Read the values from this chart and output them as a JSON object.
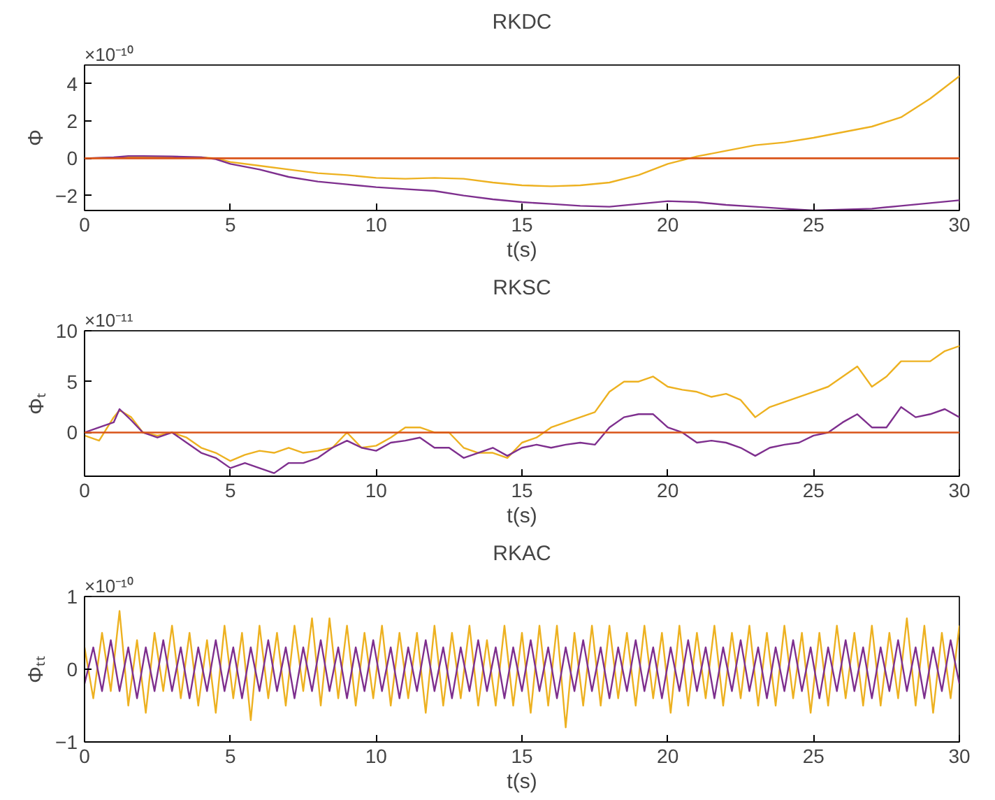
{
  "chart_data": [
    {
      "type": "line",
      "title": "RKDC",
      "xlabel": "t(s)",
      "ylabel": "Φ",
      "annotations": [
        "×10⁻¹⁰"
      ],
      "xlim": [
        0,
        30
      ],
      "ylim": [
        -2.8,
        5
      ],
      "xticks": [
        0,
        5,
        10,
        15,
        20,
        25,
        30
      ],
      "yticks": [
        -2,
        0,
        2,
        4
      ],
      "grid": false,
      "x": [
        0,
        1,
        1.5,
        2,
        3,
        4,
        4.5,
        5,
        6,
        7,
        8,
        9,
        10,
        11,
        12,
        13,
        14,
        15,
        16,
        17,
        18,
        19,
        20,
        21,
        22,
        23,
        24,
        25,
        26,
        27,
        28,
        29,
        30
      ],
      "ref_lines": [
        {
          "axis": "y",
          "value": 0,
          "color": "#d95319"
        }
      ],
      "series": [
        {
          "color": "#edb120",
          "values": [
            0,
            0.03,
            0.04,
            0.05,
            0.05,
            0.05,
            0,
            -0.2,
            -0.4,
            -0.6,
            -0.8,
            -0.9,
            -1.05,
            -1.1,
            -1.05,
            -1.1,
            -1.3,
            -1.45,
            -1.5,
            -1.45,
            -1.3,
            -0.9,
            -0.3,
            0.1,
            0.4,
            0.7,
            0.85,
            1.1,
            1.4,
            1.7,
            2.2,
            3.2,
            4.4
          ]
        },
        {
          "color": "#7e2f8e",
          "values": [
            0,
            0.05,
            0.12,
            0.12,
            0.1,
            0.05,
            -0.05,
            -0.3,
            -0.6,
            -1.0,
            -1.25,
            -1.4,
            -1.55,
            -1.65,
            -1.75,
            -2.0,
            -2.2,
            -2.35,
            -2.45,
            -2.55,
            -2.6,
            -2.45,
            -2.3,
            -2.35,
            -2.5,
            -2.6,
            -2.7,
            -2.8,
            -2.75,
            -2.7,
            -2.55,
            -2.4,
            -2.25
          ]
        }
      ]
    },
    {
      "type": "line",
      "title": "RKSC",
      "xlabel": "t(s)",
      "ylabel": "Φₜ",
      "annotations": [
        "×10⁻¹¹"
      ],
      "xlim": [
        0,
        30
      ],
      "ylim": [
        -4.3,
        10
      ],
      "xticks": [
        0,
        5,
        10,
        15,
        20,
        25,
        30
      ],
      "yticks": [
        0,
        5,
        10
      ],
      "grid": false,
      "x": [
        0,
        0.5,
        1,
        1.2,
        1.6,
        2,
        2.5,
        3,
        3.5,
        4,
        4.5,
        5,
        5.5,
        6,
        6.5,
        7,
        7.5,
        8,
        8.5,
        9,
        9.5,
        10,
        10.5,
        11,
        11.5,
        12,
        12.5,
        13,
        13.5,
        14,
        14.5,
        15,
        15.5,
        16,
        16.5,
        17,
        17.5,
        18,
        18.5,
        19,
        19.5,
        20,
        20.5,
        21,
        21.5,
        22,
        22.5,
        23,
        23.5,
        24,
        24.5,
        25,
        25.5,
        26,
        26.5,
        27,
        27.5,
        28,
        28.5,
        29,
        29.5,
        30
      ],
      "ref_lines": [
        {
          "axis": "y",
          "value": 0,
          "color": "#d95319"
        }
      ],
      "series": [
        {
          "color": "#edb120",
          "values": [
            -0.3,
            -0.8,
            1.5,
            2.2,
            1.5,
            0,
            -0.3,
            0,
            -0.5,
            -1.5,
            -2,
            -2.8,
            -2.2,
            -1.8,
            -2,
            -1.5,
            -2,
            -1.8,
            -1.5,
            0,
            -1.5,
            -1.3,
            -0.5,
            0.5,
            0.5,
            0,
            0,
            -1.5,
            -2,
            -2,
            -2.5,
            -1,
            -0.5,
            0.5,
            1,
            1.5,
            2,
            4,
            5,
            5,
            5.5,
            4.5,
            4.2,
            4,
            3.5,
            3.8,
            3.2,
            1.5,
            2.5,
            3,
            3.5,
            4,
            4.5,
            5.5,
            6.5,
            4.5,
            5.5,
            7,
            7,
            7,
            8,
            8.5
          ]
        },
        {
          "color": "#7e2f8e",
          "values": [
            0,
            0.5,
            1,
            2.3,
            1.2,
            0,
            -0.5,
            0,
            -1,
            -2,
            -2.5,
            -3.5,
            -3,
            -3.5,
            -4,
            -3,
            -3,
            -2.5,
            -1.5,
            -0.8,
            -1.5,
            -1.8,
            -1,
            -0.8,
            -0.5,
            -1.5,
            -1.5,
            -2.5,
            -2,
            -1.5,
            -2.3,
            -1.5,
            -1.2,
            -1.5,
            -1.2,
            -1,
            -1.2,
            0.5,
            1.5,
            1.8,
            1.8,
            0.5,
            0,
            -1,
            -0.8,
            -1,
            -1.5,
            -2.3,
            -1.5,
            -1.2,
            -1,
            -0.3,
            0,
            1,
            1.8,
            0.5,
            0.5,
            2.5,
            1.5,
            1.8,
            2.3,
            1.5
          ]
        }
      ]
    },
    {
      "type": "line",
      "title": "RKAC",
      "xlabel": "t(s)",
      "ylabel": "Φₜₜ",
      "annotations": [
        "×10⁻¹⁰"
      ],
      "xlim": [
        0,
        30
      ],
      "ylim": [
        -1,
        1
      ],
      "xticks": [
        0,
        5,
        10,
        15,
        20,
        25,
        30
      ],
      "yticks": [
        -1,
        0,
        1
      ],
      "grid": false,
      "x": [
        0,
        0.3,
        0.6,
        0.9,
        1.2,
        1.5,
        1.8,
        2.1,
        2.4,
        2.7,
        3,
        3.3,
        3.6,
        3.9,
        4.2,
        4.5,
        4.8,
        5.1,
        5.4,
        5.7,
        6,
        6.3,
        6.6,
        6.9,
        7.2,
        7.5,
        7.8,
        8.1,
        8.4,
        8.7,
        9,
        9.3,
        9.6,
        9.9,
        10.2,
        10.5,
        10.8,
        11.1,
        11.4,
        11.7,
        12,
        12.3,
        12.6,
        12.9,
        13.2,
        13.5,
        13.8,
        14.1,
        14.4,
        14.7,
        15,
        15.3,
        15.6,
        15.9,
        16.2,
        16.5,
        16.8,
        17.1,
        17.4,
        17.7,
        18,
        18.3,
        18.6,
        18.9,
        19.2,
        19.5,
        19.8,
        20.1,
        20.4,
        20.7,
        21,
        21.3,
        21.6,
        21.9,
        22.2,
        22.5,
        22.8,
        23.1,
        23.4,
        23.7,
        24,
        24.3,
        24.6,
        24.9,
        25.2,
        25.5,
        25.8,
        26.1,
        26.4,
        26.7,
        27,
        27.3,
        27.6,
        27.9,
        28.2,
        28.5,
        28.8,
        29.1,
        29.4,
        29.7,
        30
      ],
      "series": [
        {
          "color": "#edb120",
          "values": [
            0.3,
            -0.4,
            0.5,
            -0.3,
            0.8,
            -0.5,
            0.4,
            -0.6,
            0.5,
            -0.3,
            0.6,
            -0.4,
            0.5,
            -0.5,
            0.4,
            -0.6,
            0.6,
            -0.4,
            0.5,
            -0.7,
            0.6,
            -0.4,
            0.5,
            -0.5,
            0.6,
            -0.3,
            0.7,
            -0.5,
            0.7,
            -0.4,
            0.6,
            -0.5,
            0.5,
            -0.4,
            0.6,
            -0.5,
            0.5,
            -0.4,
            0.5,
            -0.6,
            0.6,
            -0.5,
            0.5,
            -0.4,
            0.6,
            -0.5,
            0.4,
            -0.5,
            0.6,
            -0.5,
            0.5,
            -0.6,
            0.6,
            -0.5,
            0.6,
            -0.8,
            0.5,
            -0.5,
            0.6,
            -0.5,
            0.6,
            -0.4,
            0.5,
            -0.5,
            0.6,
            -0.4,
            0.5,
            -0.6,
            0.6,
            -0.5,
            0.5,
            -0.4,
            0.6,
            -0.5,
            0.5,
            -0.4,
            0.6,
            -0.5,
            0.5,
            -0.5,
            0.6,
            -0.4,
            0.5,
            -0.6,
            0.5,
            -0.5,
            0.6,
            -0.4,
            0.5,
            -0.5,
            0.6,
            -0.5,
            0.5,
            -0.4,
            0.7,
            -0.5,
            0.6,
            -0.6,
            0.5,
            -0.4,
            0.6
          ]
        },
        {
          "color": "#7e2f8e",
          "values": [
            -0.2,
            0.3,
            -0.3,
            0.4,
            -0.3,
            0.3,
            -0.4,
            0.3,
            -0.3,
            0.4,
            -0.3,
            0.3,
            -0.4,
            0.3,
            -0.3,
            0.4,
            -0.3,
            0.3,
            -0.4,
            0.3,
            -0.3,
            0.4,
            -0.3,
            0.3,
            -0.4,
            0.3,
            -0.3,
            0.4,
            -0.3,
            0.3,
            -0.4,
            0.3,
            -0.3,
            0.4,
            -0.3,
            0.3,
            -0.4,
            0.3,
            -0.3,
            0.4,
            -0.3,
            0.3,
            -0.4,
            0.3,
            -0.3,
            0.4,
            -0.3,
            0.3,
            -0.4,
            0.3,
            -0.3,
            0.4,
            -0.3,
            0.3,
            -0.4,
            0.3,
            -0.3,
            0.4,
            -0.3,
            0.3,
            -0.4,
            0.3,
            -0.3,
            0.4,
            -0.3,
            0.3,
            -0.4,
            0.3,
            -0.3,
            0.4,
            -0.3,
            0.3,
            -0.4,
            0.3,
            -0.3,
            0.4,
            -0.3,
            0.3,
            -0.4,
            0.3,
            -0.3,
            0.4,
            -0.3,
            0.3,
            -0.4,
            0.3,
            -0.3,
            0.4,
            -0.3,
            0.3,
            -0.4,
            0.3,
            -0.3,
            0.4,
            -0.3,
            0.3,
            -0.4,
            0.3,
            -0.3,
            0.4,
            -0.2
          ]
        }
      ]
    }
  ]
}
